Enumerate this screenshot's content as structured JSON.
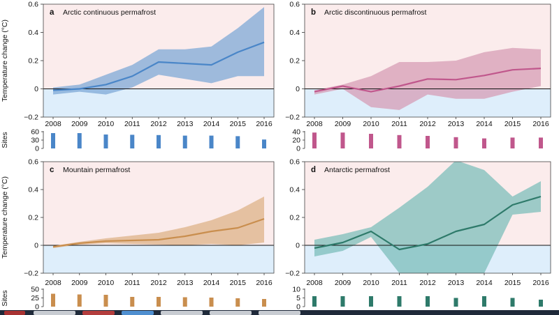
{
  "figure": {
    "ylabel": "Temperature change (°C)",
    "sites_label": "Sites"
  },
  "chart_data": [
    {
      "type": "area",
      "panel": "a",
      "title": "Arctic continuous permafrost",
      "x": [
        2008,
        2009,
        2010,
        2011,
        2012,
        2013,
        2014,
        2015,
        2016
      ],
      "xlabel": "",
      "ylabel": "Temperature change (°C)",
      "ylim": [
        -0.2,
        0.6
      ],
      "yticks": [
        -0.2,
        0,
        0.2,
        0.4,
        0.6
      ],
      "ytick_labels": [
        "−0.2",
        "0",
        "0.2",
        "0.4",
        "0.6"
      ],
      "grid": false,
      "series": [
        {
          "values": [
            -0.01,
            0.0,
            0.03,
            0.09,
            0.19,
            0.18,
            0.17,
            0.26,
            0.33
          ]
        }
      ],
      "band_upper": [
        0.01,
        0.03,
        0.1,
        0.17,
        0.28,
        0.28,
        0.3,
        0.43,
        0.58
      ],
      "band_lower": [
        -0.04,
        -0.02,
        -0.04,
        0.01,
        0.1,
        0.07,
        0.04,
        0.09,
        0.09
      ],
      "line_color": "#4a86c8",
      "band_color": "#7aa6d6",
      "sites": {
        "yticks": [
          0,
          30,
          60
        ],
        "ymax": 60,
        "values": [
          55,
          55,
          50,
          49,
          48,
          46,
          46,
          44,
          32
        ]
      },
      "bar_color": "#4a86c8"
    },
    {
      "type": "area",
      "panel": "b",
      "title": "Arctic discontinuous permafrost",
      "x": [
        2008,
        2009,
        2010,
        2011,
        2012,
        2013,
        2014,
        2015,
        2016
      ],
      "xlabel": "",
      "ylabel": "",
      "ylim": [
        -0.2,
        0.6
      ],
      "yticks": [
        -0.2,
        0,
        0.2,
        0.4,
        0.6
      ],
      "ytick_labels": [
        "−0.2",
        "0",
        "0.2",
        "0.4",
        "0.6"
      ],
      "grid": false,
      "series": [
        {
          "values": [
            -0.02,
            0.02,
            -0.02,
            0.02,
            0.07,
            0.065,
            0.095,
            0.135,
            0.145
          ]
        }
      ],
      "band_upper": [
        -0.01,
        0.03,
        0.09,
        0.19,
        0.19,
        0.2,
        0.26,
        0.29,
        0.28
      ],
      "band_lower": [
        -0.04,
        0.0,
        -0.13,
        -0.15,
        -0.04,
        -0.07,
        -0.07,
        -0.02,
        0.02
      ],
      "line_color": "#c0578c",
      "band_color": "#d59ab3",
      "sites": {
        "yticks": [
          0,
          20,
          40
        ],
        "ymax": 40,
        "values": [
          38,
          38,
          35,
          32,
          30,
          27,
          24,
          26,
          26
        ]
      },
      "bar_color": "#c0578c"
    },
    {
      "type": "area",
      "panel": "c",
      "title": "Mountain permafrost",
      "x": [
        2008,
        2009,
        2010,
        2011,
        2012,
        2013,
        2014,
        2015,
        2016
      ],
      "xlabel": "",
      "ylabel": "Temperature change (°C)",
      "ylim": [
        -0.2,
        0.6
      ],
      "yticks": [
        -0.2,
        0,
        0.2,
        0.4,
        0.6
      ],
      "ytick_labels": [
        "−0.2",
        "0",
        "0.2",
        "0.4",
        "0.6"
      ],
      "grid": false,
      "series": [
        {
          "values": [
            -0.01,
            0.015,
            0.03,
            0.035,
            0.04,
            0.065,
            0.1,
            0.125,
            0.19
          ]
        }
      ],
      "band_upper": [
        -0.005,
        0.025,
        0.05,
        0.07,
        0.09,
        0.13,
        0.18,
        0.25,
        0.35
      ],
      "band_lower": [
        -0.02,
        0.005,
        0.015,
        0.01,
        0.005,
        0.0,
        0.01,
        0.0,
        0.02
      ],
      "line_color": "#c98e4e",
      "band_color": "#dcb083",
      "sites": {
        "yticks": [
          0,
          25,
          50
        ],
        "ymax": 50,
        "values": [
          37,
          35,
          34,
          28,
          28,
          27,
          26,
          24,
          22
        ]
      },
      "bar_color": "#c98e4e"
    },
    {
      "type": "area",
      "panel": "d",
      "title": "Antarctic permafrost",
      "x": [
        2008,
        2009,
        2010,
        2011,
        2012,
        2013,
        2014,
        2015,
        2016
      ],
      "xlabel": "",
      "ylabel": "",
      "ylim": [
        -0.2,
        0.6
      ],
      "yticks": [
        -0.2,
        0,
        0.2,
        0.4,
        0.6
      ],
      "ytick_labels": [
        "−0.2",
        "0",
        "0.2",
        "0.4",
        "0.6"
      ],
      "grid": false,
      "series": [
        {
          "values": [
            -0.02,
            0.02,
            0.1,
            -0.03,
            0.01,
            0.1,
            0.15,
            0.29,
            0.35
          ]
        }
      ],
      "band_upper": [
        0.04,
        0.08,
        0.13,
        0.27,
        0.42,
        0.61,
        0.54,
        0.35,
        0.46
      ],
      "band_lower": [
        -0.08,
        -0.04,
        0.06,
        -0.2,
        -0.2,
        -0.2,
        -0.2,
        0.22,
        0.24
      ],
      "line_color": "#2e7a6a",
      "band_color": "#78bdb8",
      "sites": {
        "yticks": [
          0,
          5,
          10
        ],
        "ymax": 10,
        "values": [
          6,
          6,
          6,
          6,
          6,
          5,
          6,
          5,
          4
        ]
      },
      "bar_color": "#2e7a6a"
    }
  ],
  "colors": {
    "warm_bg": "#fbecec",
    "cool_bg": "#deeefb",
    "taskbar": "#1f2a3a"
  }
}
